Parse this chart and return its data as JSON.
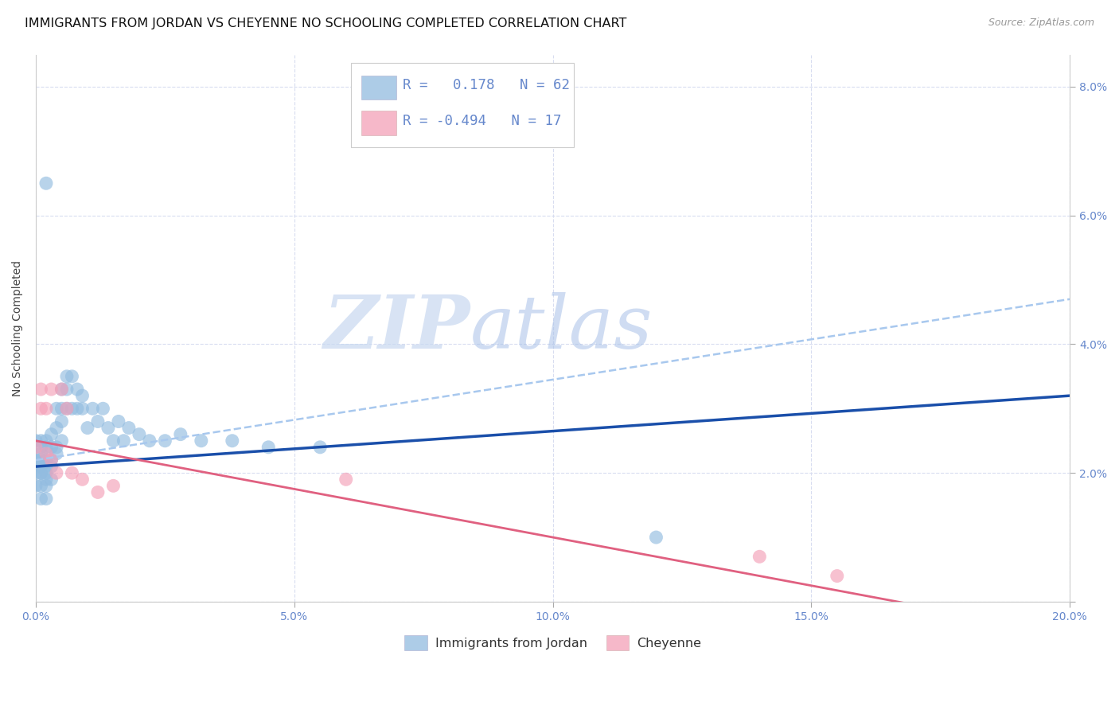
{
  "title": "IMMIGRANTS FROM JORDAN VS CHEYENNE NO SCHOOLING COMPLETED CORRELATION CHART",
  "source": "Source: ZipAtlas.com",
  "ylabel": "No Schooling Completed",
  "xlim": [
    0.0,
    0.2
  ],
  "ylim": [
    0.0,
    0.085
  ],
  "xticks": [
    0.0,
    0.05,
    0.1,
    0.15,
    0.2
  ],
  "xtick_labels": [
    "0.0%",
    "5.0%",
    "10.0%",
    "15.0%",
    "20.0%"
  ],
  "yticks_right": [
    0.0,
    0.02,
    0.04,
    0.06,
    0.08
  ],
  "ytick_labels_right": [
    "",
    "2.0%",
    "4.0%",
    "6.0%",
    "8.0%"
  ],
  "blue_color": "#92bce0",
  "pink_color": "#f4a0b8",
  "blue_line_color": "#1a4faa",
  "pink_line_color": "#e06080",
  "dashed_line_color": "#a8c8ee",
  "tick_color": "#6688cc",
  "background_color": "#ffffff",
  "grid_color": "#d8ddf0",
  "title_fontsize": 11.5,
  "axis_label_fontsize": 10,
  "tick_fontsize": 10,
  "jordan_x": [
    0.0,
    0.0,
    0.0,
    0.0,
    0.001,
    0.001,
    0.001,
    0.001,
    0.001,
    0.001,
    0.001,
    0.001,
    0.001,
    0.002,
    0.002,
    0.002,
    0.002,
    0.002,
    0.002,
    0.002,
    0.002,
    0.003,
    0.003,
    0.003,
    0.003,
    0.003,
    0.004,
    0.004,
    0.004,
    0.004,
    0.005,
    0.005,
    0.005,
    0.005,
    0.006,
    0.006,
    0.006,
    0.007,
    0.007,
    0.008,
    0.008,
    0.009,
    0.009,
    0.01,
    0.011,
    0.012,
    0.013,
    0.014,
    0.015,
    0.016,
    0.017,
    0.018,
    0.02,
    0.022,
    0.025,
    0.028,
    0.032,
    0.038,
    0.045,
    0.055,
    0.002,
    0.12
  ],
  "jordan_y": [
    0.022,
    0.025,
    0.018,
    0.02,
    0.023,
    0.02,
    0.025,
    0.018,
    0.021,
    0.016,
    0.024,
    0.022,
    0.02,
    0.019,
    0.022,
    0.025,
    0.016,
    0.021,
    0.018,
    0.024,
    0.02,
    0.022,
    0.026,
    0.019,
    0.024,
    0.021,
    0.027,
    0.03,
    0.024,
    0.023,
    0.03,
    0.025,
    0.033,
    0.028,
    0.035,
    0.03,
    0.033,
    0.03,
    0.035,
    0.03,
    0.033,
    0.03,
    0.032,
    0.027,
    0.03,
    0.028,
    0.03,
    0.027,
    0.025,
    0.028,
    0.025,
    0.027,
    0.026,
    0.025,
    0.025,
    0.026,
    0.025,
    0.025,
    0.024,
    0.024,
    0.065,
    0.01
  ],
  "cheyenne_x": [
    0.0,
    0.001,
    0.001,
    0.002,
    0.002,
    0.003,
    0.003,
    0.004,
    0.005,
    0.006,
    0.007,
    0.009,
    0.012,
    0.015,
    0.06,
    0.14,
    0.155
  ],
  "cheyenne_y": [
    0.024,
    0.033,
    0.03,
    0.023,
    0.03,
    0.022,
    0.033,
    0.02,
    0.033,
    0.03,
    0.02,
    0.019,
    0.017,
    0.018,
    0.019,
    0.007,
    0.004
  ],
  "watermark_zip": "ZIP",
  "watermark_atlas": "atlas"
}
